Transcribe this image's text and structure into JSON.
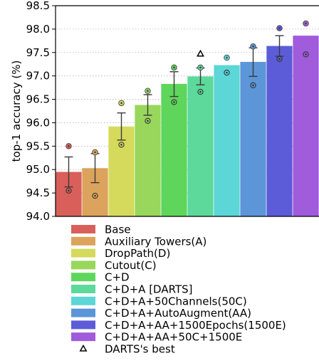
{
  "chart_data": {
    "type": "bar",
    "ylabel": "top-1 accuracy (%)",
    "ylim": [
      94.0,
      98.5
    ],
    "yticks": [
      94.0,
      94.5,
      95.0,
      95.5,
      96.0,
      96.5,
      97.0,
      97.5,
      98.0,
      98.5
    ],
    "ytick_labels": [
      "94.0",
      "94.5",
      "95.0",
      "95.5",
      "96.0",
      "96.5",
      "97.0",
      "97.5",
      "98.0",
      "98.5"
    ],
    "grid": "horizontal dotted",
    "legend_position": "below",
    "series": [
      {
        "name": "Base",
        "mean": 94.95,
        "err_low": 94.63,
        "err_high": 95.27,
        "min": 94.55,
        "max": 95.5,
        "color": "#d95f5a"
      },
      {
        "name": "Auxiliary Towers(A)",
        "mean": 95.03,
        "err_low": 94.72,
        "err_high": 95.34,
        "min": 94.44,
        "max": 95.37,
        "color": "#dca35c"
      },
      {
        "name": "DropPath(D)",
        "mean": 95.92,
        "err_low": 95.63,
        "err_high": 96.21,
        "min": 95.53,
        "max": 96.42,
        "color": "#d5da5c"
      },
      {
        "name": "Cutout(C)",
        "mean": 96.38,
        "err_low": 96.16,
        "err_high": 96.6,
        "min": 96.04,
        "max": 96.68,
        "color": "#98d75c"
      },
      {
        "name": "C+D",
        "mean": 96.83,
        "err_low": 96.56,
        "err_high": 97.09,
        "min": 96.44,
        "max": 97.18,
        "color": "#5ed65c"
      },
      {
        "name": "C+D+A [DARTS]",
        "mean": 96.99,
        "err_low": 96.81,
        "err_high": 97.17,
        "min": 96.66,
        "max": 97.18,
        "color": "#5cd99b"
      },
      {
        "name": "C+D+A+50Channels(50C)",
        "mean": 97.23,
        "err_low": 97.23,
        "err_high": 97.23,
        "min": 97.07,
        "max": 97.39,
        "color": "#5cd6d6"
      },
      {
        "name": "C+D+A+AutoAugment(AA)",
        "mean": 97.3,
        "err_low": 96.99,
        "err_high": 97.6,
        "min": 96.8,
        "max": 97.63,
        "color": "#5c96d9"
      },
      {
        "name": "C+D+A+AA+1500Epochs(1500E)",
        "mean": 97.64,
        "err_low": 97.42,
        "err_high": 97.86,
        "min": 97.36,
        "max": 98.02,
        "color": "#5c5cd8"
      },
      {
        "name": "C+D+A+AA+50C+1500E",
        "mean": 97.86,
        "err_low": 97.86,
        "err_high": 97.86,
        "min": 97.46,
        "max": 98.12,
        "color": "#a05cdb"
      }
    ],
    "darts_best": {
      "label": "DARTS's best",
      "bar_index": 5,
      "value": 97.47
    }
  }
}
